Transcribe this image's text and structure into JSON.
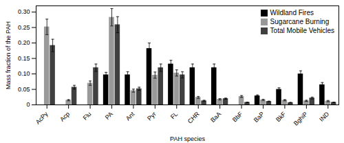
{
  "chart_data": {
    "type": "bar",
    "x_label": "PAH species",
    "y_label": "Mass fraction of the PAH",
    "categories": [
      "AcPy",
      "Acp",
      "Flu",
      "PA",
      "Ant",
      "Pyr",
      "FL",
      "CHR",
      "BaA",
      "BbF",
      "BaP",
      "BkF",
      "BghiP",
      "IND"
    ],
    "series": [
      {
        "name": "Wildland Fires",
        "color": "#000000",
        "values": [
          null,
          null,
          null,
          0.097,
          0.097,
          0.182,
          0.132,
          0.12,
          0.12,
          null,
          0.029,
          0.05,
          0.1,
          0.065
        ],
        "errors": [
          null,
          null,
          null,
          0.008,
          0.01,
          0.018,
          0.012,
          0.012,
          0.012,
          null,
          0.003,
          0.005,
          0.01,
          0.007
        ]
      },
      {
        "name": "Sugarcane Burning",
        "color": "#999999",
        "values": [
          0.252,
          0.015,
          0.07,
          0.283,
          0.046,
          0.096,
          0.103,
          0.024,
          0.018,
          0.027,
          0.016,
          0.015,
          0.013,
          0.012
        ],
        "errors": [
          0.025,
          0.002,
          0.007,
          0.028,
          0.005,
          0.01,
          0.01,
          0.003,
          0.002,
          0.003,
          0.002,
          0.002,
          0.002,
          0.002
        ]
      },
      {
        "name": "Total Mobile Vehicles",
        "color": "#404040",
        "values": [
          0.192,
          0.057,
          0.12,
          0.259,
          0.052,
          0.12,
          0.097,
          0.013,
          0.02,
          0.008,
          0.011,
          0.007,
          0.022,
          0.008
        ],
        "errors": [
          0.02,
          0.006,
          0.012,
          0.026,
          0.005,
          0.012,
          0.01,
          0.002,
          0.002,
          0.001,
          0.001,
          0.001,
          0.003,
          0.001
        ]
      }
    ],
    "ylim": [
      0,
      0.32
    ],
    "yticks": [
      0,
      0.05,
      {
        "value": 0.1,
        "label": "0.10"
      },
      0.15,
      {
        "value": 0.2,
        "label": "0.20"
      },
      0.25,
      {
        "value": 0.3,
        "label": "0.30"
      }
    ],
    "grid": false,
    "legend": "upper right"
  }
}
